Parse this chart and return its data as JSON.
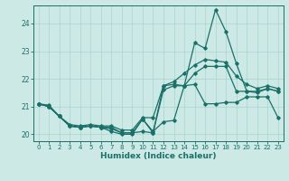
{
  "xlabel": "Humidex (Indice chaleur)",
  "xlim": [
    -0.5,
    23.5
  ],
  "ylim": [
    19.75,
    24.65
  ],
  "yticks": [
    20,
    21,
    22,
    23,
    24
  ],
  "xticks": [
    0,
    1,
    2,
    3,
    4,
    5,
    6,
    7,
    8,
    9,
    10,
    11,
    12,
    13,
    14,
    15,
    16,
    17,
    18,
    19,
    20,
    21,
    22,
    23
  ],
  "background_color": "#cce9e6",
  "grid_color": "#aad4d0",
  "line_color": "#1a7068",
  "line1_x": [
    0,
    1,
    2,
    3,
    4,
    5,
    6,
    7,
    8,
    9,
    10,
    11,
    12,
    13,
    14,
    15,
    16,
    17,
    18,
    19,
    20,
    21,
    22,
    23
  ],
  "line1_y": [
    21.1,
    21.0,
    20.65,
    20.3,
    20.25,
    20.3,
    20.25,
    20.25,
    20.05,
    20.05,
    20.55,
    20.1,
    20.45,
    20.5,
    21.75,
    21.8,
    21.1,
    21.1,
    21.15,
    21.15,
    21.35,
    21.35,
    21.35,
    20.6
  ],
  "line2_x": [
    0,
    1,
    2,
    3,
    4,
    5,
    6,
    7,
    8,
    9,
    10,
    11,
    12,
    13,
    14,
    15,
    16,
    17,
    18,
    19,
    20,
    21,
    22,
    23
  ],
  "line2_y": [
    21.1,
    21.0,
    20.65,
    20.3,
    20.25,
    20.3,
    20.25,
    20.2,
    20.05,
    20.05,
    20.1,
    20.05,
    21.6,
    21.75,
    21.75,
    22.2,
    22.45,
    22.45,
    22.45,
    21.55,
    21.55,
    21.5,
    21.65,
    21.55
  ],
  "line3_x": [
    0,
    1,
    2,
    3,
    4,
    5,
    6,
    7,
    8,
    9,
    10,
    11,
    12,
    13,
    14,
    15,
    16,
    17,
    18,
    19,
    20,
    21,
    22,
    23
  ],
  "line3_y": [
    21.1,
    21.0,
    20.65,
    20.3,
    20.25,
    20.3,
    20.25,
    20.1,
    20.0,
    20.0,
    20.55,
    20.05,
    21.75,
    21.8,
    21.75,
    23.3,
    23.1,
    24.5,
    23.7,
    22.55,
    21.55,
    21.55,
    21.65,
    21.55
  ],
  "line4_x": [
    0,
    1,
    2,
    3,
    4,
    5,
    6,
    7,
    8,
    9,
    10,
    11,
    12,
    13,
    14,
    15,
    16,
    17,
    18,
    19,
    20,
    21,
    22,
    23
  ],
  "line4_y": [
    21.1,
    21.05,
    20.65,
    20.35,
    20.3,
    20.35,
    20.3,
    20.3,
    20.15,
    20.15,
    20.6,
    20.6,
    21.75,
    21.9,
    22.2,
    22.5,
    22.7,
    22.65,
    22.6,
    22.1,
    21.8,
    21.65,
    21.75,
    21.65
  ]
}
